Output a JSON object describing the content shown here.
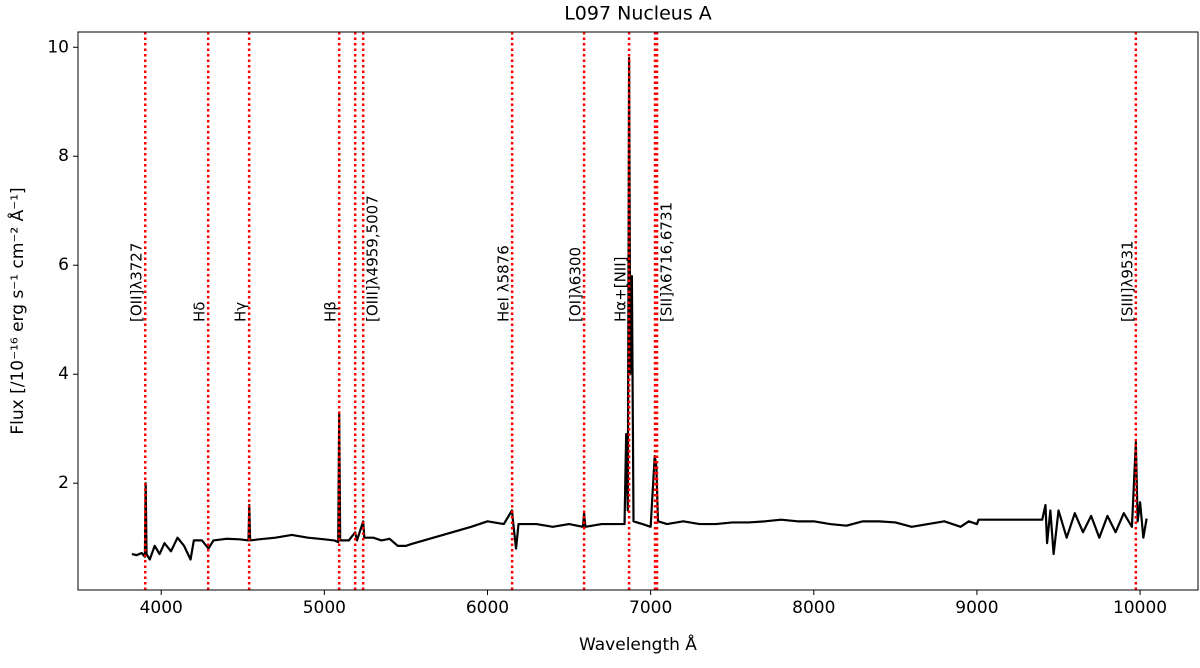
{
  "chart_data": {
    "type": "line",
    "title": "L097 Nucleus A",
    "x_label": "Wavelength Å",
    "y_label": "Flux  [/10⁻¹⁶ erg s⁻¹ cm⁻² Å⁻¹]",
    "color": "#000000",
    "x": [
      3820,
      3850,
      3880,
      3900,
      3905,
      3910,
      3930,
      3960,
      3990,
      4020,
      4060,
      4100,
      4140,
      4180,
      4200,
      4250,
      4290,
      4320,
      4400,
      4480,
      4535,
      4540,
      4545,
      4600,
      4700,
      4800,
      4900,
      5000,
      5060,
      5085,
      5091,
      5097,
      5150,
      5189,
      5200,
      5238,
      5245,
      5300,
      5350,
      5400,
      5450,
      5500,
      5530,
      5900,
      6000,
      6100,
      6150,
      6160,
      6175,
      6190,
      6300,
      6400,
      6500,
      6585,
      6592,
      6600,
      6700,
      6800,
      6840,
      6850,
      6860,
      6868,
      6875,
      6885,
      6895,
      6950,
      7000,
      7025,
      7035,
      7045,
      7100,
      7200,
      7300,
      7400,
      7500,
      7600,
      7700,
      7800,
      7900,
      8000,
      8100,
      8200,
      8300,
      8400,
      8500,
      8600,
      8700,
      8800,
      8900,
      8950,
      9000,
      9010,
      9400,
      9420,
      9430,
      9450,
      9470,
      9500,
      9550,
      9600,
      9650,
      9700,
      9750,
      9800,
      9850,
      9900,
      9950,
      9974,
      9985,
      10000,
      10020,
      10040
    ],
    "values": [
      0.7,
      0.68,
      0.72,
      0.65,
      2.0,
      0.7,
      0.6,
      0.85,
      0.7,
      0.9,
      0.75,
      1.0,
      0.85,
      0.6,
      0.95,
      0.95,
      0.8,
      0.95,
      0.98,
      0.97,
      0.95,
      1.6,
      0.95,
      0.97,
      1.0,
      1.05,
      1.0,
      0.97,
      0.95,
      0.92,
      3.3,
      0.95,
      0.95,
      1.1,
      0.95,
      1.3,
      1.0,
      1.0,
      0.95,
      0.98,
      0.85,
      0.85,
      0.88,
      1.2,
      1.3,
      1.25,
      1.5,
      1.2,
      0.8,
      1.25,
      1.25,
      1.2,
      1.25,
      1.2,
      1.45,
      1.2,
      1.25,
      1.25,
      1.25,
      2.9,
      1.5,
      9.8,
      4.0,
      5.8,
      1.3,
      1.25,
      1.2,
      2.5,
      2.3,
      1.3,
      1.25,
      1.3,
      1.25,
      1.25,
      1.28,
      1.28,
      1.3,
      1.33,
      1.3,
      1.3,
      1.25,
      1.22,
      1.3,
      1.3,
      1.28,
      1.2,
      1.25,
      1.3,
      1.2,
      1.3,
      1.25,
      1.33,
      1.33,
      1.6,
      0.9,
      1.5,
      0.7,
      1.5,
      1.0,
      1.45,
      1.1,
      1.4,
      1.0,
      1.4,
      1.1,
      1.45,
      1.2,
      2.75,
      1.3,
      1.65,
      1.0,
      1.35
    ],
    "xlim": [
      3490,
      10355
    ],
    "ylim": [
      0.04,
      10.28
    ],
    "xticks": [
      4000,
      5000,
      6000,
      7000,
      8000,
      9000,
      10000
    ],
    "yticks": [
      2,
      4,
      6,
      8,
      10
    ],
    "line_color": "#ff0000",
    "lines": [
      {
        "label": "[OII]λ3727",
        "wavelengths": [
          3902
        ]
      },
      {
        "label": "Hδ",
        "wavelengths": [
          4288
        ]
      },
      {
        "label": "Hγ",
        "wavelengths": [
          4539
        ]
      },
      {
        "label": "Hβ",
        "wavelengths": [
          5091
        ]
      },
      {
        "label": "[OIII]λ4959,5007",
        "wavelengths": [
          5189,
          5238
        ]
      },
      {
        "label": "HeI λ5876",
        "wavelengths": [
          6151
        ]
      },
      {
        "label": "[OI]λ6300",
        "wavelengths": [
          6592
        ]
      },
      {
        "label": "Hα+[NII]",
        "wavelengths": [
          6868
        ]
      },
      {
        "label": "[SII]λ6716,6731",
        "wavelengths": [
          7027,
          7039
        ]
      },
      {
        "label": "[SIII]λ9531",
        "wavelengths": [
          9974
        ]
      }
    ]
  }
}
